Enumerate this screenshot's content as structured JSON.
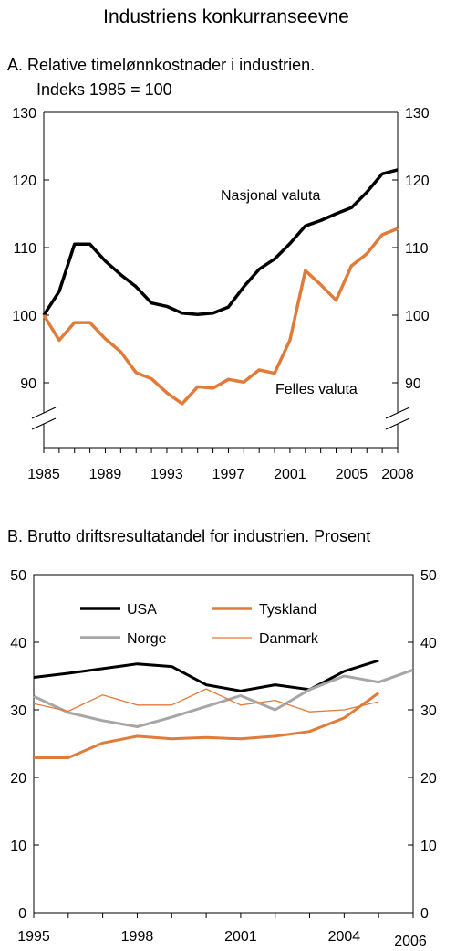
{
  "figure": {
    "title": "Industriens konkurranseevne"
  },
  "chart_data": [
    {
      "type": "line",
      "panel": "A",
      "title": "A.  Relative timelønnkostnader i industrien.",
      "subtitle": "Indeks 1985 = 100",
      "ylim": [
        85,
        130
      ],
      "yticks": [
        90,
        100,
        110,
        120,
        130
      ],
      "y_axis_break": true,
      "xlim": [
        1985,
        2008
      ],
      "xtick_labels": [
        "1985",
        "1989",
        "1993",
        "1997",
        "2001",
        "2005",
        "2008"
      ],
      "xtick_values": [
        1985,
        1989,
        1993,
        1997,
        2001,
        2005,
        2008
      ],
      "x": [
        1985,
        1986,
        1987,
        1988,
        1989,
        1990,
        1991,
        1992,
        1993,
        1994,
        1995,
        1996,
        1997,
        1998,
        1999,
        2000,
        2001,
        2002,
        2003,
        2004,
        2005,
        2006,
        2007,
        2008
      ],
      "series": [
        {
          "name": "Nasjonal valuta",
          "color": "#000000",
          "values": [
            100,
            103.5,
            110.5,
            110.5,
            108,
            106,
            104.2,
            101.8,
            101.3,
            100.3,
            100.1,
            100.3,
            101.2,
            104.2,
            106.8,
            108.3,
            110.6,
            113.2,
            114,
            115,
            115.9,
            118.2,
            120.9,
            121.5
          ]
        },
        {
          "name": "Felles valuta",
          "color": "#e07b39",
          "values": [
            100,
            96.3,
            98.9,
            98.9,
            96.5,
            94.6,
            91.5,
            90.6,
            88.5,
            86.9,
            89.4,
            89.2,
            90.5,
            90.1,
            91.9,
            91.4,
            96.3,
            106.6,
            104.5,
            102.2,
            107.3,
            109.1,
            111.9,
            112.8
          ]
        }
      ]
    },
    {
      "type": "line",
      "panel": "B",
      "title": "B.  Brutto driftsresultatandel for industrien. Prosent",
      "ylim": [
        0,
        50
      ],
      "yticks": [
        0,
        10,
        20,
        30,
        40,
        50
      ],
      "xlim": [
        1995,
        2006
      ],
      "xtick_labels": [
        "1995",
        "1998",
        "2001",
        "2004",
        "2006"
      ],
      "xtick_values": [
        1995,
        1998,
        2001,
        2004,
        2006
      ],
      "legend": "top, inside plot, two columns",
      "series": [
        {
          "name": "USA",
          "color": "#000000",
          "width": 3,
          "x": [
            1995,
            1996,
            1997,
            1998,
            1999,
            2000,
            2001,
            2002,
            2003,
            2004,
            2005
          ],
          "values": [
            34.8,
            35.4,
            36.1,
            36.8,
            36.4,
            33.7,
            32.8,
            33.7,
            33.0,
            35.7,
            37.3
          ]
        },
        {
          "name": "Tyskland",
          "color": "#e07b39",
          "width": 3,
          "x": [
            1995,
            1996,
            1997,
            1998,
            1999,
            2000,
            2001,
            2002,
            2003,
            2004,
            2005
          ],
          "values": [
            22.9,
            22.9,
            25.1,
            26.1,
            25.7,
            25.9,
            25.7,
            26.1,
            26.8,
            28.8,
            32.5
          ]
        },
        {
          "name": "Norge",
          "color": "#a6a6a6",
          "width": 3,
          "x": [
            1995,
            1996,
            1997,
            1998,
            1999,
            2000,
            2001,
            2002,
            2003,
            2004,
            2005,
            2006
          ],
          "values": [
            32.0,
            29.6,
            28.4,
            27.5,
            28.9,
            30.5,
            32.1,
            30.0,
            33.0,
            35.0,
            34.1,
            35.9
          ]
        },
        {
          "name": "Danmark",
          "color": "#e07b39",
          "width": 1.3,
          "x": [
            1995,
            1996,
            1997,
            1998,
            1999,
            2000,
            2001,
            2002,
            2003,
            2004,
            2005
          ],
          "values": [
            30.9,
            29.8,
            32.2,
            30.7,
            30.7,
            33.1,
            30.7,
            31.4,
            29.7,
            30.0,
            31.2
          ]
        }
      ]
    }
  ]
}
